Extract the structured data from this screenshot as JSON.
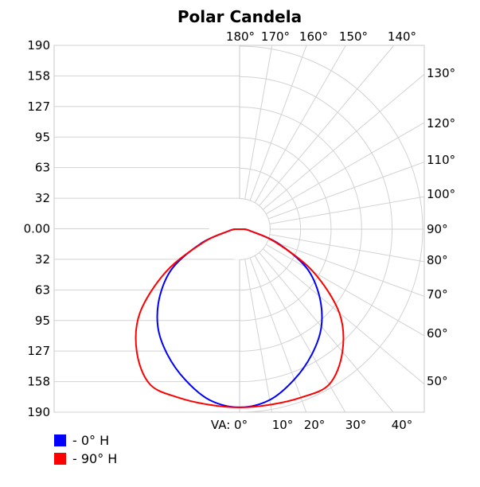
{
  "chart_data": {
    "type": "polar",
    "title": "Polar Candela",
    "y_tick_labels": [
      "190",
      "158",
      "127",
      "95",
      "63",
      "32",
      "0.00",
      "32",
      "63",
      "95",
      "127",
      "158",
      "190"
    ],
    "angle_labels_top": [
      "180°",
      "170°",
      "160°",
      "150°",
      "140°"
    ],
    "angle_labels_right": [
      "130°",
      "120°",
      "110°",
      "100°",
      "90°",
      "80°",
      "70°",
      "60°",
      "50°"
    ],
    "angle_labels_bottom": [
      "VA: 0°",
      "10°",
      "20°",
      "30°",
      "40°"
    ],
    "rmax": 190,
    "angle_unit": "degrees",
    "series": [
      {
        "name": "- 0° H",
        "color": "#0000ff",
        "angles": [
          0,
          10,
          20,
          30,
          40,
          50,
          60,
          70,
          80,
          90
        ],
        "values": [
          185,
          180,
          166,
          150,
          132,
          108,
          80,
          42,
          12,
          5
        ]
      },
      {
        "name": "- 90° H",
        "color": "#ff0000",
        "angles": [
          0,
          10,
          20,
          30,
          40,
          50,
          60,
          70,
          80,
          90
        ],
        "values": [
          185,
          185,
          186,
          186,
          166,
          135,
          88,
          40,
          12,
          5
        ]
      }
    ]
  }
}
